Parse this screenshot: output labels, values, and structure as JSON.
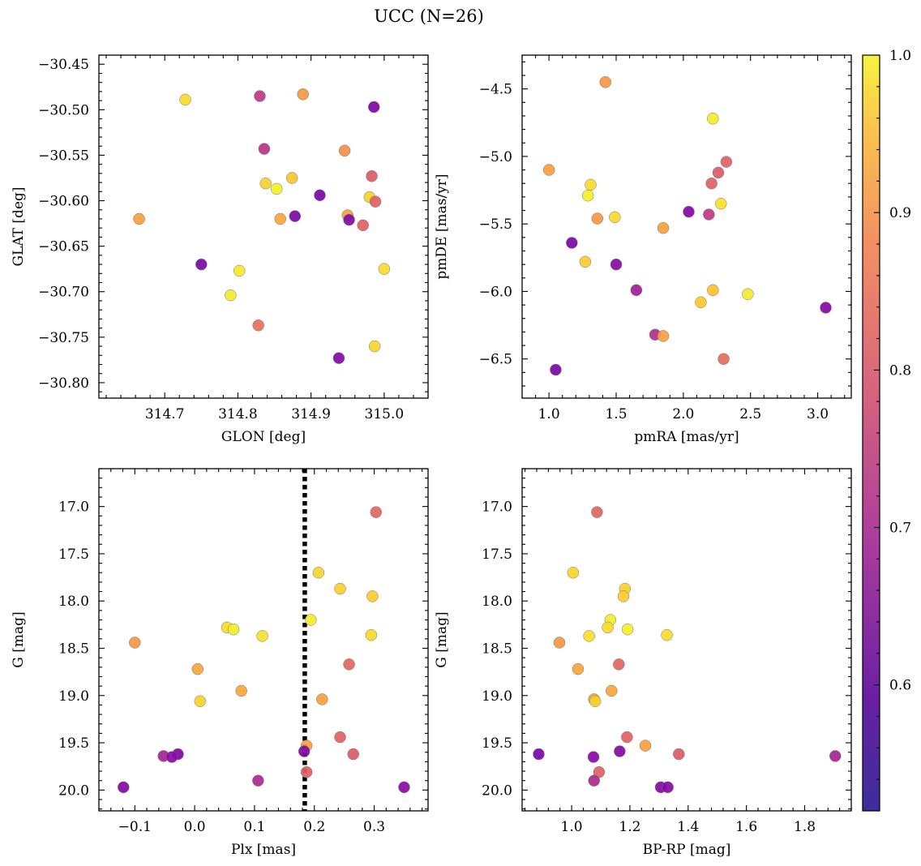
{
  "figure": {
    "title": "UCC (N=26)"
  },
  "colorbar": {
    "cmap": "plasma",
    "range": [
      0.52,
      1.0
    ],
    "ticks": [
      "0.6",
      "0.7",
      "0.8",
      "0.9",
      "1.0"
    ]
  },
  "chart_data": [
    {
      "type": "scatter",
      "xlabel": "GLON [deg]",
      "ylabel": "GLAT [deg]",
      "xlim": [
        314.61,
        315.06
      ],
      "ylim": [
        -30.817,
        -30.44
      ],
      "xticks": [
        "314.7",
        "314.8",
        "314.9",
        "315.0"
      ],
      "yticks": [
        "-30.45",
        "-30.50",
        "-30.55",
        "-30.60",
        "-30.65",
        "-30.70",
        "-30.75",
        "-30.80"
      ],
      "points": [
        {
          "x": 314.665,
          "y": -30.62,
          "c": 0.82
        },
        {
          "x": 314.728,
          "y": -30.489,
          "c": 0.92
        },
        {
          "x": 314.75,
          "y": -30.67,
          "c": 0.54
        },
        {
          "x": 314.79,
          "y": -30.704,
          "c": 0.95
        },
        {
          "x": 314.802,
          "y": -30.677,
          "c": 0.95
        },
        {
          "x": 314.828,
          "y": -30.737,
          "c": 0.75
        },
        {
          "x": 314.83,
          "y": -30.485,
          "c": 0.65
        },
        {
          "x": 314.836,
          "y": -30.543,
          "c": 0.64
        },
        {
          "x": 314.838,
          "y": -30.581,
          "c": 0.9
        },
        {
          "x": 314.853,
          "y": -30.587,
          "c": 0.98
        },
        {
          "x": 314.858,
          "y": -30.62,
          "c": 0.83
        },
        {
          "x": 314.874,
          "y": -30.575,
          "c": 0.88
        },
        {
          "x": 314.878,
          "y": -30.617,
          "c": 0.54
        },
        {
          "x": 314.889,
          "y": -30.483,
          "c": 0.81
        },
        {
          "x": 314.912,
          "y": -30.594,
          "c": 0.54
        },
        {
          "x": 314.938,
          "y": -30.773,
          "c": 0.55
        },
        {
          "x": 314.946,
          "y": -30.545,
          "c": 0.8
        },
        {
          "x": 314.95,
          "y": -30.616,
          "c": 0.82
        },
        {
          "x": 314.952,
          "y": -30.621,
          "c": 0.55
        },
        {
          "x": 314.971,
          "y": -30.627,
          "c": 0.72
        },
        {
          "x": 314.98,
          "y": -30.596,
          "c": 0.9
        },
        {
          "x": 314.983,
          "y": -30.573,
          "c": 0.71
        },
        {
          "x": 314.986,
          "y": -30.497,
          "c": 0.54
        },
        {
          "x": 314.987,
          "y": -30.76,
          "c": 0.91
        },
        {
          "x": 314.988,
          "y": -30.601,
          "c": 0.72
        },
        {
          "x": 315.0,
          "y": -30.675,
          "c": 0.92
        }
      ]
    },
    {
      "type": "scatter",
      "xlabel": "pmRA [mas/yr]",
      "ylabel": "pmDE [mas/yr]",
      "xlim": [
        0.8,
        3.25
      ],
      "ylim": [
        -6.79,
        -4.25
      ],
      "xticks": [
        "1.0",
        "1.5",
        "2.0",
        "2.5",
        "3.0"
      ],
      "yticks": [
        "-4.5",
        "-5.0",
        "-5.5",
        "-6.0",
        "-6.5"
      ],
      "points": [
        {
          "x": 1.42,
          "y": -4.45,
          "c": 0.81
        },
        {
          "x": 2.22,
          "y": -4.72,
          "c": 0.96
        },
        {
          "x": 2.32,
          "y": -5.04,
          "c": 0.72
        },
        {
          "x": 1.0,
          "y": -5.1,
          "c": 0.82
        },
        {
          "x": 2.26,
          "y": -5.12,
          "c": 0.71
        },
        {
          "x": 2.21,
          "y": -5.2,
          "c": 0.72
        },
        {
          "x": 1.31,
          "y": -5.21,
          "c": 0.92
        },
        {
          "x": 1.29,
          "y": -5.29,
          "c": 0.98
        },
        {
          "x": 2.28,
          "y": -5.35,
          "c": 0.93
        },
        {
          "x": 2.04,
          "y": -5.41,
          "c": 0.55
        },
        {
          "x": 2.19,
          "y": -5.43,
          "c": 0.65
        },
        {
          "x": 1.49,
          "y": -5.45,
          "c": 0.92
        },
        {
          "x": 1.36,
          "y": -5.46,
          "c": 0.81
        },
        {
          "x": 1.85,
          "y": -5.53,
          "c": 0.82
        },
        {
          "x": 1.17,
          "y": -5.64,
          "c": 0.54
        },
        {
          "x": 1.27,
          "y": -5.78,
          "c": 0.89
        },
        {
          "x": 1.5,
          "y": -5.8,
          "c": 0.56
        },
        {
          "x": 1.65,
          "y": -5.99,
          "c": 0.6
        },
        {
          "x": 2.22,
          "y": -5.99,
          "c": 0.87
        },
        {
          "x": 2.48,
          "y": -6.02,
          "c": 0.95
        },
        {
          "x": 2.13,
          "y": -6.08,
          "c": 0.88
        },
        {
          "x": 3.06,
          "y": -6.12,
          "c": 0.55
        },
        {
          "x": 1.79,
          "y": -6.32,
          "c": 0.63
        },
        {
          "x": 1.85,
          "y": -6.33,
          "c": 0.82
        },
        {
          "x": 2.3,
          "y": -6.5,
          "c": 0.74
        },
        {
          "x": 1.05,
          "y": -6.58,
          "c": 0.54
        }
      ]
    },
    {
      "type": "scatter",
      "xlabel": "Plx [mas]",
      "ylabel": "G [mag]",
      "xlim": [
        -0.16,
        0.39
      ],
      "ylim": [
        20.22,
        16.6
      ],
      "xticks": [
        "-0.1",
        "0.0",
        "0.1",
        "0.2",
        "0.3"
      ],
      "yticks": [
        "17.0",
        "17.5",
        "18.0",
        "18.5",
        "19.0",
        "19.5",
        "20.0"
      ],
      "vline": {
        "x": 0.184,
        "style": "dotted"
      },
      "points": [
        {
          "x": 0.303,
          "y": 17.06,
          "c": 0.73
        },
        {
          "x": 0.207,
          "y": 17.7,
          "c": 0.91
        },
        {
          "x": 0.243,
          "y": 17.87,
          "c": 0.9
        },
        {
          "x": 0.297,
          "y": 17.95,
          "c": 0.89
        },
        {
          "x": 0.194,
          "y": 18.2,
          "c": 0.96
        },
        {
          "x": 0.054,
          "y": 18.28,
          "c": 0.92
        },
        {
          "x": 0.065,
          "y": 18.3,
          "c": 0.98
        },
        {
          "x": 0.295,
          "y": 18.36,
          "c": 0.92
        },
        {
          "x": 0.113,
          "y": 18.37,
          "c": 0.93
        },
        {
          "x": -0.1,
          "y": 18.44,
          "c": 0.81
        },
        {
          "x": 0.258,
          "y": 18.67,
          "c": 0.73
        },
        {
          "x": 0.005,
          "y": 18.72,
          "c": 0.83
        },
        {
          "x": 0.078,
          "y": 18.95,
          "c": 0.83
        },
        {
          "x": 0.213,
          "y": 19.04,
          "c": 0.82
        },
        {
          "x": 0.009,
          "y": 19.06,
          "c": 0.9
        },
        {
          "x": 0.243,
          "y": 19.44,
          "c": 0.72
        },
        {
          "x": 0.187,
          "y": 19.53,
          "c": 0.82
        },
        {
          "x": 0.183,
          "y": 19.59,
          "c": 0.55
        },
        {
          "x": -0.028,
          "y": 19.62,
          "c": 0.54
        },
        {
          "x": 0.265,
          "y": 19.62,
          "c": 0.71
        },
        {
          "x": -0.052,
          "y": 19.64,
          "c": 0.61
        },
        {
          "x": -0.038,
          "y": 19.65,
          "c": 0.56
        },
        {
          "x": 0.187,
          "y": 19.81,
          "c": 0.72
        },
        {
          "x": 0.106,
          "y": 19.9,
          "c": 0.62
        },
        {
          "x": -0.119,
          "y": 19.97,
          "c": 0.55
        },
        {
          "x": 0.35,
          "y": 19.97,
          "c": 0.56
        }
      ]
    },
    {
      "type": "scatter",
      "xlabel": "BP-RP [mag]",
      "ylabel": "G [mag]",
      "xlim": [
        0.83,
        1.96
      ],
      "ylim": [
        20.22,
        16.6
      ],
      "xticks": [
        "1.0",
        "1.2",
        "1.4",
        "1.6",
        "1.8"
      ],
      "yticks": [
        "17.0",
        "17.5",
        "18.0",
        "18.5",
        "19.0",
        "19.5",
        "20.0"
      ],
      "points": [
        {
          "x": 1.087,
          "y": 17.06,
          "c": 0.73
        },
        {
          "x": 1.005,
          "y": 17.7,
          "c": 0.91
        },
        {
          "x": 1.183,
          "y": 17.87,
          "c": 0.9
        },
        {
          "x": 1.178,
          "y": 17.95,
          "c": 0.89
        },
        {
          "x": 1.133,
          "y": 18.2,
          "c": 0.96
        },
        {
          "x": 1.124,
          "y": 18.28,
          "c": 0.92
        },
        {
          "x": 1.192,
          "y": 18.3,
          "c": 0.98
        },
        {
          "x": 1.327,
          "y": 18.36,
          "c": 0.92
        },
        {
          "x": 1.06,
          "y": 18.37,
          "c": 0.93
        },
        {
          "x": 0.958,
          "y": 18.44,
          "c": 0.81
        },
        {
          "x": 1.162,
          "y": 18.67,
          "c": 0.73
        },
        {
          "x": 1.022,
          "y": 18.72,
          "c": 0.83
        },
        {
          "x": 1.137,
          "y": 18.95,
          "c": 0.83
        },
        {
          "x": 1.077,
          "y": 19.04,
          "c": 0.82
        },
        {
          "x": 1.081,
          "y": 19.06,
          "c": 0.9
        },
        {
          "x": 1.19,
          "y": 19.44,
          "c": 0.72
        },
        {
          "x": 1.253,
          "y": 19.53,
          "c": 0.82
        },
        {
          "x": 1.165,
          "y": 19.59,
          "c": 0.55
        },
        {
          "x": 0.887,
          "y": 19.62,
          "c": 0.54
        },
        {
          "x": 1.368,
          "y": 19.62,
          "c": 0.71
        },
        {
          "x": 1.905,
          "y": 19.64,
          "c": 0.61
        },
        {
          "x": 1.075,
          "y": 19.65,
          "c": 0.56
        },
        {
          "x": 1.094,
          "y": 19.81,
          "c": 0.72
        },
        {
          "x": 1.077,
          "y": 19.9,
          "c": 0.62
        },
        {
          "x": 1.306,
          "y": 19.97,
          "c": 0.55
        },
        {
          "x": 1.33,
          "y": 19.97,
          "c": 0.56
        }
      ]
    }
  ]
}
